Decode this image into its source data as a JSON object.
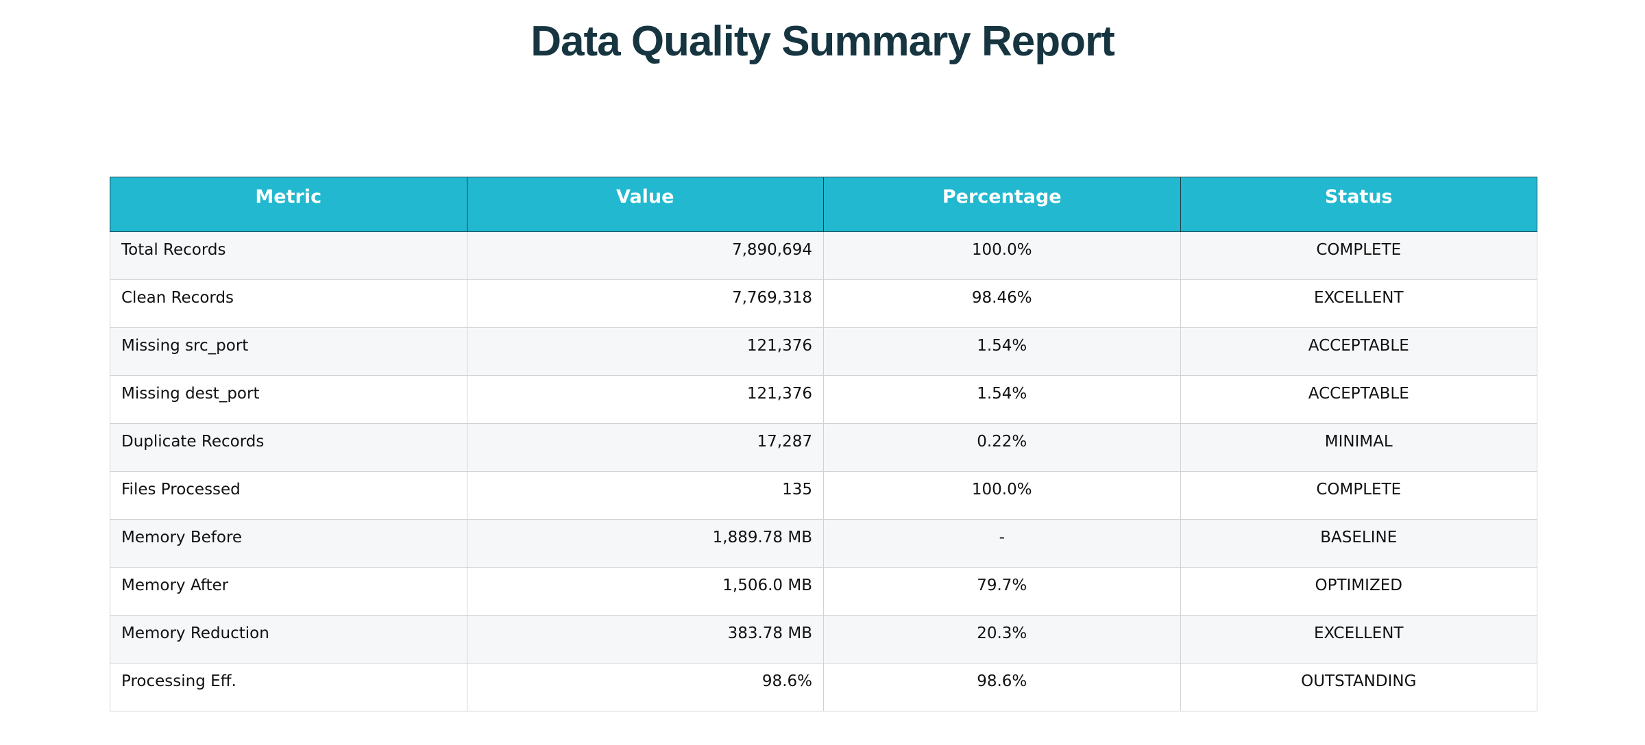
{
  "title": "Data Quality Summary Report",
  "chart_data": {
    "type": "table",
    "title": "Data Quality Summary Report",
    "columns": [
      "Metric",
      "Value",
      "Percentage",
      "Status"
    ],
    "rows": [
      [
        "Total Records",
        "7,890,694",
        "100.0%",
        "COMPLETE"
      ],
      [
        "Clean Records",
        "7,769,318",
        "98.46%",
        "EXCELLENT"
      ],
      [
        "Missing src_port",
        "121,376",
        "1.54%",
        "ACCEPTABLE"
      ],
      [
        "Missing dest_port",
        "121,376",
        "1.54%",
        "ACCEPTABLE"
      ],
      [
        "Duplicate Records",
        "17,287",
        "0.22%",
        "MINIMAL"
      ],
      [
        "Files Processed",
        "135",
        "100.0%",
        "COMPLETE"
      ],
      [
        "Memory Before",
        "1,889.78 MB",
        "-",
        "BASELINE"
      ],
      [
        "Memory After",
        "1,506.0 MB",
        "79.7%",
        "OPTIMIZED"
      ],
      [
        "Memory Reduction",
        "383.78 MB",
        "20.3%",
        "EXCELLENT"
      ],
      [
        "Processing Eff.",
        "98.6%",
        "98.6%",
        "OUTSTANDING"
      ]
    ]
  },
  "colors": {
    "header_bg": "#22b8cf",
    "header_text": "#ffffff",
    "title_text": "#163540",
    "row_alt_bg": "#f6f7f9"
  }
}
